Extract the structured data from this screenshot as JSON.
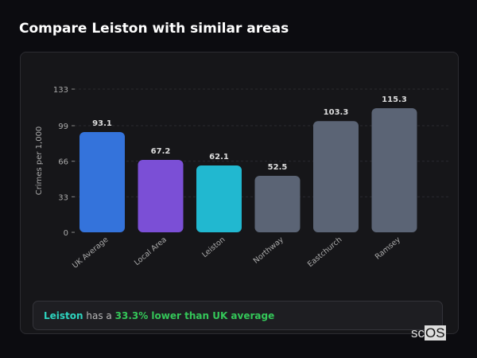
{
  "title": "Compare Leiston with similar areas",
  "chart_data": {
    "type": "bar",
    "categories": [
      "UK Average",
      "Local Area",
      "Leiston",
      "Northway",
      "Eastchurch",
      "Ramsey"
    ],
    "values": [
      93.1,
      67.2,
      62.1,
      52.5,
      103.3,
      115.3
    ],
    "value_labels": [
      "93.1",
      "67.2",
      "62.1",
      "52.5",
      "103.3",
      "115.3"
    ],
    "colors": [
      "#3473db",
      "#7b4fd6",
      "#21b8d0",
      "#5b6475",
      "#5b6475",
      "#5b6475"
    ],
    "ylabel": "Crimes per 1,000",
    "xlabel": "",
    "yticks": [
      0,
      33,
      66,
      99,
      133
    ],
    "ylim": [
      0,
      133
    ],
    "grid": true
  },
  "summary": {
    "place": "Leiston",
    "middle": "has a",
    "comparison": "33.3% lower than UK average"
  },
  "logo": {
    "text_a": "sc",
    "text_b": "OS"
  }
}
